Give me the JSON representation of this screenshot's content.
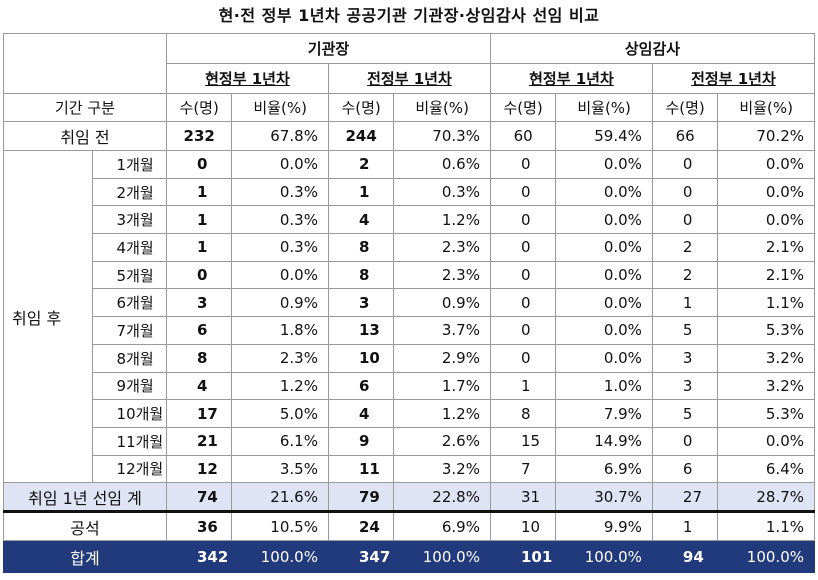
{
  "title": "현·전 정부 1년차 공공기관 기관장·상임감사 선임 비교",
  "header": {
    "group_labels": [
      "기관장",
      "상임감사"
    ],
    "sub_labels": [
      "현정부 1년차",
      "전정부 1년차",
      "현정부 1년차",
      "전정부 1년차"
    ],
    "period_label": "기간 구분",
    "col_count": "수(명)",
    "col_ratio": "비율(%)"
  },
  "rows": {
    "pre": {
      "label": "취임 전",
      "cells": [
        "232",
        "67.8%",
        "244",
        "70.3%",
        "60",
        "59.4%",
        "66",
        "70.2%"
      ]
    },
    "after_label": "취임 후",
    "months": [
      {
        "label": "1개월",
        "cells": [
          "0",
          "0.0%",
          "2",
          "0.6%",
          "0",
          "0.0%",
          "0",
          "0.0%"
        ]
      },
      {
        "label": "2개월",
        "cells": [
          "1",
          "0.3%",
          "1",
          "0.3%",
          "0",
          "0.0%",
          "0",
          "0.0%"
        ]
      },
      {
        "label": "3개월",
        "cells": [
          "1",
          "0.3%",
          "4",
          "1.2%",
          "0",
          "0.0%",
          "0",
          "0.0%"
        ]
      },
      {
        "label": "4개월",
        "cells": [
          "1",
          "0.3%",
          "8",
          "2.3%",
          "0",
          "0.0%",
          "2",
          "2.1%"
        ]
      },
      {
        "label": "5개월",
        "cells": [
          "0",
          "0.0%",
          "8",
          "2.3%",
          "0",
          "0.0%",
          "2",
          "2.1%"
        ]
      },
      {
        "label": "6개월",
        "cells": [
          "3",
          "0.9%",
          "3",
          "0.9%",
          "0",
          "0.0%",
          "1",
          "1.1%"
        ]
      },
      {
        "label": "7개월",
        "cells": [
          "6",
          "1.8%",
          "13",
          "3.7%",
          "0",
          "0.0%",
          "5",
          "5.3%"
        ]
      },
      {
        "label": "8개월",
        "cells": [
          "8",
          "2.3%",
          "10",
          "2.9%",
          "0",
          "0.0%",
          "3",
          "3.2%"
        ]
      },
      {
        "label": "9개월",
        "cells": [
          "4",
          "1.2%",
          "6",
          "1.7%",
          "1",
          "1.0%",
          "3",
          "3.2%"
        ]
      },
      {
        "label": "10개월",
        "cells": [
          "17",
          "5.0%",
          "4",
          "1.2%",
          "8",
          "7.9%",
          "5",
          "5.3%"
        ]
      },
      {
        "label": "11개월",
        "cells": [
          "21",
          "6.1%",
          "9",
          "2.6%",
          "15",
          "14.9%",
          "0",
          "0.0%"
        ]
      },
      {
        "label": "12개월",
        "cells": [
          "12",
          "3.5%",
          "11",
          "3.2%",
          "7",
          "6.9%",
          "6",
          "6.4%"
        ]
      }
    ],
    "sum": {
      "label": "취임 1년 선임 계",
      "cells": [
        "74",
        "21.6%",
        "79",
        "22.8%",
        "31",
        "30.7%",
        "27",
        "28.7%"
      ]
    },
    "vacant": {
      "label": "공석",
      "cells": [
        "36",
        "10.5%",
        "24",
        "6.9%",
        "10",
        "9.9%",
        "1",
        "1.1%"
      ]
    },
    "total": {
      "label": "합계",
      "cells": [
        "342",
        "100.0%",
        "347",
        "100.0%",
        "101",
        "100.0%",
        "94",
        "100.0%"
      ]
    }
  },
  "colors": {
    "total_bg": "#213a7c",
    "sum_bg": "#dfe4f4"
  }
}
